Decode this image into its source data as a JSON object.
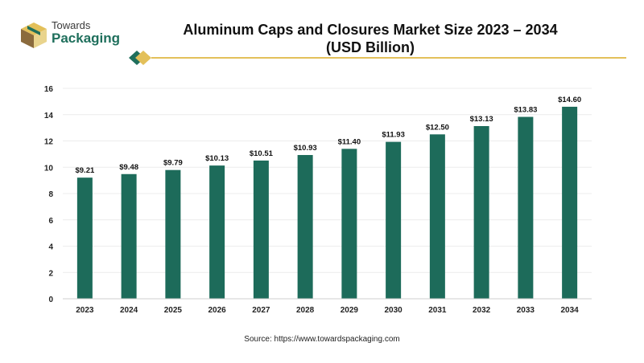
{
  "brand": {
    "line1": "Towards",
    "line2": "Packaging",
    "colors": {
      "green": "#1f6f5c",
      "gold": "#e3c05a",
      "brown": "#8b6b3d"
    }
  },
  "header": {
    "title_line1": "Aluminum Caps and Closures Market Size 2023 – 2034",
    "title_line2": "(USD Billion)"
  },
  "footer": {
    "source": "Source: https://www.towardspackaging.com"
  },
  "chart_data": {
    "type": "bar",
    "categories": [
      "2023",
      "2024",
      "2025",
      "2026",
      "2027",
      "2028",
      "2029",
      "2030",
      "2031",
      "2032",
      "2033",
      "2034"
    ],
    "values": [
      9.21,
      9.48,
      9.79,
      10.13,
      10.51,
      10.93,
      11.4,
      11.93,
      12.5,
      13.13,
      13.83,
      14.6
    ],
    "value_labels": [
      "$9.21",
      "$9.48",
      "$9.79",
      "$10.13",
      "$10.51",
      "$10.93",
      "$11.40",
      "$11.93",
      "$12.50",
      "$13.13",
      "$13.83",
      "$14.60"
    ],
    "ylim": [
      0,
      16
    ],
    "yticks": [
      0,
      2,
      4,
      6,
      8,
      10,
      12,
      14,
      16
    ],
    "grid": true,
    "bar_color": "#1d6b5a"
  }
}
